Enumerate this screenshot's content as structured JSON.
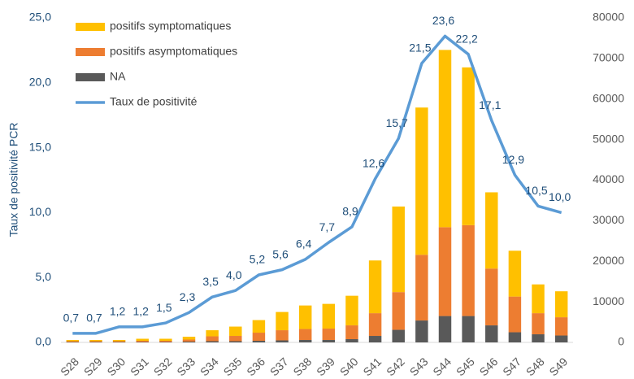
{
  "chart_data": {
    "type": "combo",
    "y_label": "Taux de positivité PCR",
    "categories": [
      "S28",
      "S29",
      "S30",
      "S31",
      "S32",
      "S33",
      "S34",
      "S35",
      "S36",
      "S37",
      "S38",
      "S39",
      "S40",
      "S41",
      "S42",
      "S43",
      "S44",
      "S45",
      "S46",
      "S47",
      "S48",
      "S49"
    ],
    "series": [
      {
        "name": "positifs symptomatiques",
        "color": "#ffc000",
        "type": "bar",
        "axis": "y2",
        "values": [
          300,
          300,
          300,
          500,
          500,
          700,
          1500,
          2300,
          3100,
          4500,
          5800,
          6100,
          7300,
          13000,
          21100,
          36300,
          43700,
          38900,
          18800,
          11300,
          7100,
          6400
        ]
      },
      {
        "name": "positifs asymptomatiques",
        "color": "#ed7d31",
        "type": "bar",
        "axis": "y2",
        "values": [
          200,
          200,
          200,
          300,
          300,
          500,
          1200,
          1300,
          2000,
          2500,
          2700,
          2800,
          3400,
          5600,
          9300,
          16200,
          21900,
          22400,
          14000,
          8800,
          5200,
          4500
        ]
      },
      {
        "name": "NA",
        "color": "#595959",
        "type": "bar",
        "axis": "y2",
        "values": [
          100,
          100,
          100,
          100,
          100,
          200,
          300,
          300,
          400,
          500,
          600,
          600,
          800,
          1600,
          3100,
          5400,
          6500,
          6500,
          4200,
          2500,
          2000,
          1700
        ]
      },
      {
        "name": "Taux de positivité",
        "color": "#5b9bd5",
        "type": "line",
        "values": [
          0.7,
          0.7,
          1.2,
          1.2,
          1.5,
          2.3,
          3.5,
          4.0,
          5.2,
          5.6,
          6.4,
          7.7,
          8.9,
          12.6,
          15.7,
          21.5,
          23.6,
          22.2,
          17.1,
          12.9,
          10.5,
          10.0
        ],
        "value_labels": [
          "0,7",
          "0,7",
          "1,2",
          "1,2",
          "1,5",
          "2,3",
          "3,5",
          "4,0",
          "5,2",
          "5,6",
          "6,4",
          "7,7",
          "8,9",
          "12,6",
          "15,7",
          "21,5",
          "23,6",
          "22,2",
          "17,1",
          "12,9",
          "10,5",
          "10,0"
        ]
      }
    ],
    "ylim": [
      0,
      25
    ],
    "yticks": [
      {
        "value": 0,
        "label": "0,0"
      },
      {
        "value": 5,
        "label": "5,0"
      },
      {
        "value": 10,
        "label": "10,0"
      },
      {
        "value": 15,
        "label": "15,0"
      },
      {
        "value": 20,
        "label": "20,0"
      },
      {
        "value": 25,
        "label": "25,0"
      }
    ],
    "y2lim": [
      0,
      80000
    ],
    "y2ticks": [
      0,
      10000,
      20000,
      30000,
      40000,
      50000,
      60000,
      70000,
      80000
    ],
    "legend": "top-left"
  }
}
